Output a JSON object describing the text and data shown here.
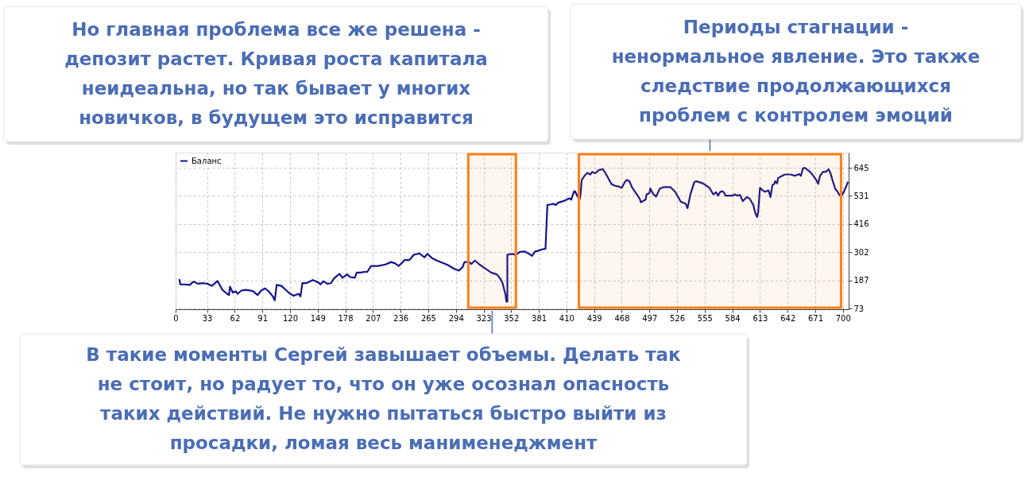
{
  "chart_data": {
    "type": "line",
    "annotations": [
      "Но главная проблема все же решена - депозит растет. Кривая роста капитала неидеальна, но так бывает у многих новичков, в будущем это исправится"
    ],
    "x": [
      4,
      5,
      9,
      15,
      18,
      20,
      23,
      29,
      33,
      38,
      44,
      49,
      54,
      56,
      57,
      60,
      63,
      65,
      69,
      73,
      77,
      81,
      86,
      90,
      94,
      98,
      102,
      104,
      106,
      111,
      115,
      120,
      124,
      129,
      131,
      133,
      137,
      144,
      150,
      152,
      155,
      159,
      163,
      166,
      172,
      175,
      180,
      183,
      188,
      190,
      194,
      198,
      201,
      205,
      212,
      220,
      226,
      230,
      234,
      237,
      240,
      245,
      250,
      256,
      261,
      264,
      269,
      274,
      285,
      292,
      297,
      301,
      303,
      308,
      310,
      314,
      319,
      326,
      331,
      337,
      341,
      343,
      346,
      347,
      348,
      348,
      353,
      357,
      361,
      366,
      370,
      374,
      377,
      381,
      385,
      388,
      389,
      390,
      393,
      396,
      399,
      401,
      407,
      413,
      415,
      418,
      419,
      422,
      424,
      425,
      426,
      429,
      432,
      435,
      437,
      440,
      444,
      448,
      451,
      454,
      457,
      461,
      465,
      468,
      471,
      473,
      476,
      479,
      483,
      487,
      488,
      493,
      494,
      497,
      498,
      501,
      504,
      508,
      512,
      519,
      524,
      530,
      535,
      537,
      540,
      544,
      546,
      553,
      560,
      564,
      567,
      569,
      571,
      573,
      575,
      577,
      584,
      587,
      589,
      592,
      595,
      599,
      602,
      606,
      608,
      610,
      611,
      613,
      616,
      618,
      622,
      624,
      626,
      628,
      629,
      631,
      632,
      635,
      639,
      645,
      650,
      654,
      656,
      658,
      660,
      664,
      668,
      672,
      674,
      676,
      679,
      682,
      685,
      687,
      689,
      692,
      694,
      696,
      698,
      701,
      704,
      705
    ],
    "series": [
      {
        "name": "Баланс",
        "color": "#14148c",
        "values": [
          190,
          171,
          171,
          169,
          181,
          181,
          174,
          176,
          174,
          165,
          185,
          149,
          133,
          128,
          162,
          138,
          143,
          133,
          146,
          149,
          147,
          144,
          128,
          147,
          155,
          141,
          122,
          106,
          169,
          165,
          151,
          133,
          125,
          133,
          122,
          176,
          176,
          189,
          178,
          171,
          184,
          174,
          176,
          195,
          214,
          198,
          212,
          201,
          198,
          219,
          219,
          222,
          222,
          246,
          246,
          252,
          262,
          257,
          246,
          257,
          270,
          270,
          292,
          297,
          281,
          295,
          278,
          268,
          251,
          235,
          227,
          241,
          262,
          262,
          254,
          268,
          251,
          233,
          219,
          212,
          192,
          176,
          130,
          101,
          101,
          292,
          295,
          291,
          303,
          305,
          297,
          287,
          305,
          309,
          314,
          316,
          408,
          494,
          496,
          499,
          494,
          503,
          510,
          521,
          516,
          550,
          550,
          526,
          518,
          548,
          596,
          613,
          625,
          618,
          629,
          623,
          636,
          640,
          623,
          602,
          580,
          572,
          569,
          564,
          586,
          596,
          591,
          564,
          542,
          518,
          505,
          516,
          537,
          542,
          561,
          539,
          528,
          561,
          567,
          567,
          548,
          507,
          499,
          481,
          537,
          586,
          591,
          582,
          564,
          537,
          546,
          532,
          546,
          550,
          546,
          532,
          532,
          537,
          532,
          535,
          510,
          526,
          521,
          494,
          462,
          445,
          462,
          564,
          553,
          548,
          553,
          526,
          575,
          580,
          591,
          582,
          604,
          610,
          618,
          618,
          613,
          620,
          613,
          643,
          645,
          634,
          618,
          596,
          580,
          613,
          629,
          629,
          639,
          623,
          596,
          559,
          550,
          537,
          528,
          548,
          575,
          586
        ]
      }
    ],
    "xlim": [
      0,
      706
    ],
    "ylim": [
      70,
      707
    ],
    "xticks": [
      0,
      33,
      62,
      91,
      120,
      149,
      178,
      207,
      236,
      265,
      294,
      323,
      352,
      381,
      410,
      439,
      468,
      497,
      526,
      555,
      584,
      613,
      642,
      671,
      700
    ],
    "yticks": [
      73,
      187,
      302,
      416,
      531,
      645
    ],
    "grid": true,
    "legend": "top left",
    "bands": [
      {
        "axis": "x",
        "from": 307,
        "to": 357,
        "color": "#ff7f17",
        "label": "В такие моменты Сергей завышает объемы. Делать так не стоит, но радует то, что он уже осознал опасность таких действий. Не нужно пытаться быстро выйти из просадки, ломая весь манименеджмент"
      },
      {
        "axis": "x",
        "from": 423,
        "to": 698,
        "color": "#ff7f17",
        "label": "Периоды стагнации - ненормальное явление. Это также следствие продолжающихся проблем с контролем эмоций"
      }
    ]
  }
}
